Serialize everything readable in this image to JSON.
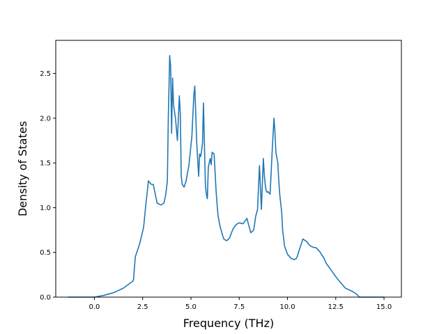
{
  "chart_data": {
    "type": "line",
    "title": "",
    "xlabel": "Frequency (THz)",
    "ylabel": "Density of States",
    "xlim": [
      -2.0,
      15.9
    ],
    "ylim": [
      0.0,
      2.87
    ],
    "xticks": [
      0.0,
      2.5,
      5.0,
      7.5,
      10.0,
      12.5,
      15.0
    ],
    "xtick_labels": [
      "0.0",
      "2.5",
      "5.0",
      "7.5",
      "10.0",
      "12.5",
      "15.0"
    ],
    "yticks": [
      0.0,
      0.5,
      1.0,
      1.5,
      2.0,
      2.5
    ],
    "ytick_labels": [
      "0.0",
      "0.5",
      "1.0",
      "1.5",
      "2.0",
      "2.5"
    ],
    "grid": false,
    "series": [
      {
        "color": "#1f77b4",
        "x": [
          -1.35,
          0.0,
          0.5,
          1.0,
          1.5,
          2.0,
          2.03,
          2.12,
          2.35,
          2.55,
          2.65,
          2.8,
          2.87,
          2.95,
          3.05,
          3.25,
          3.45,
          3.6,
          3.7,
          3.78,
          3.83,
          3.9,
          3.95,
          4.0,
          4.05,
          4.1,
          4.2,
          4.3,
          4.4,
          4.45,
          4.5,
          4.55,
          4.65,
          4.75,
          4.9,
          5.05,
          5.15,
          5.2,
          5.3,
          5.4,
          5.45,
          5.5,
          5.55,
          5.6,
          5.65,
          5.7,
          5.75,
          5.8,
          5.85,
          5.9,
          6.0,
          6.05,
          6.1,
          6.2,
          6.3,
          6.35,
          6.4,
          6.5,
          6.6,
          6.7,
          6.85,
          7.0,
          7.1,
          7.2,
          7.3,
          7.4,
          7.5,
          7.7,
          7.9,
          8.1,
          8.25,
          8.3,
          8.35,
          8.45,
          8.55,
          8.65,
          8.75,
          8.8,
          8.85,
          8.9,
          8.95,
          9.0,
          9.1,
          9.2,
          9.3,
          9.35,
          9.4,
          9.5,
          9.55,
          9.6,
          9.7,
          9.75,
          9.85,
          10.0,
          10.2,
          10.35,
          10.45,
          10.5,
          10.6,
          10.8,
          11.0,
          11.1,
          11.2,
          11.3,
          11.5,
          11.7,
          11.9,
          12.0,
          12.1,
          12.3,
          12.6,
          13.0,
          13.4,
          13.6,
          13.72,
          13.8,
          14.5,
          15.0
        ],
        "y": [
          0.0,
          0.0,
          0.02,
          0.05,
          0.1,
          0.18,
          0.2,
          0.45,
          0.6,
          0.78,
          1.0,
          1.3,
          1.28,
          1.26,
          1.26,
          1.05,
          1.03,
          1.05,
          1.15,
          1.3,
          2.02,
          2.7,
          2.58,
          1.83,
          2.45,
          2.15,
          2.0,
          1.75,
          2.25,
          2.05,
          1.35,
          1.26,
          1.23,
          1.3,
          1.48,
          1.8,
          2.25,
          2.36,
          1.73,
          1.35,
          1.6,
          1.57,
          1.63,
          1.72,
          2.17,
          1.7,
          1.25,
          1.15,
          1.1,
          1.45,
          1.55,
          1.48,
          1.62,
          1.6,
          1.2,
          1.05,
          0.92,
          0.8,
          0.72,
          0.65,
          0.63,
          0.66,
          0.72,
          0.77,
          0.8,
          0.82,
          0.83,
          0.82,
          0.88,
          0.72,
          0.75,
          0.82,
          0.9,
          0.98,
          1.47,
          0.98,
          1.55,
          1.37,
          1.25,
          1.19,
          1.17,
          1.18,
          1.15,
          1.6,
          2.0,
          1.85,
          1.62,
          1.5,
          1.3,
          1.15,
          0.95,
          0.75,
          0.57,
          0.48,
          0.43,
          0.42,
          0.43,
          0.45,
          0.52,
          0.65,
          0.62,
          0.59,
          0.57,
          0.56,
          0.55,
          0.5,
          0.43,
          0.38,
          0.35,
          0.29,
          0.2,
          0.1,
          0.06,
          0.03,
          0.0,
          0.0,
          0.0,
          0.0
        ]
      }
    ]
  }
}
